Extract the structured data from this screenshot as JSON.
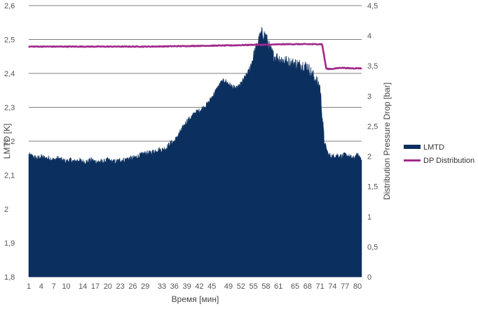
{
  "chart_data": {
    "type": "area",
    "xlabel": "Время [мин]",
    "ylabel_left": "LMTD [K]",
    "ylabel_right": "Distribution Pressure Drop [bar]",
    "x_ticks": [
      "1",
      "4",
      "7",
      "10",
      "14",
      "17",
      "20",
      "23",
      "26",
      "29",
      "33",
      "36",
      "39",
      "42",
      "45",
      "49",
      "52",
      "55",
      "58",
      "61",
      "65",
      "68",
      "71",
      "74",
      "77",
      "80"
    ],
    "x_range": [
      1,
      81
    ],
    "y_left": {
      "range": [
        1.8,
        2.6
      ],
      "ticks": [
        1.8,
        1.9,
        2.0,
        2.1,
        2.2,
        2.3,
        2.4,
        2.5,
        2.6
      ],
      "tick_labels": [
        "1,8",
        "1,9",
        "2",
        "2,1",
        "2,2",
        "2,3",
        "2,4",
        "2,5",
        "2,6"
      ]
    },
    "y_right": {
      "range": [
        0,
        4.5
      ],
      "ticks": [
        0,
        0.5,
        1,
        1.5,
        2,
        2.5,
        3,
        3.5,
        4,
        4.5
      ],
      "tick_labels": [
        "0",
        "0,5",
        "1",
        "1,5",
        "2",
        "2,5",
        "3",
        "3,5",
        "4",
        "4,5"
      ]
    },
    "grid": "horizontal",
    "legend_position": "right",
    "series": [
      {
        "name": "LMTD",
        "type": "area",
        "axis": "left",
        "color": "#0b2f5e",
        "x": [
          1,
          2,
          3,
          4,
          5,
          6,
          7,
          8,
          9,
          10,
          11,
          12,
          13,
          14,
          15,
          16,
          17,
          18,
          19,
          20,
          21,
          22,
          23,
          24,
          25,
          26,
          27,
          28,
          29,
          30,
          31,
          32,
          33,
          34,
          35,
          36,
          37,
          38,
          39,
          40,
          41,
          42,
          43,
          44,
          45,
          46,
          47,
          48,
          49,
          50,
          51,
          52,
          53,
          54,
          55,
          56,
          57,
          58,
          59,
          60,
          61,
          62,
          63,
          64,
          65,
          66,
          67,
          68,
          69,
          70,
          71,
          72,
          73,
          74,
          75,
          76,
          77,
          78,
          79,
          80,
          81
        ],
        "values": [
          2.16,
          2.155,
          2.15,
          2.155,
          2.15,
          2.15,
          2.145,
          2.15,
          2.145,
          2.14,
          2.145,
          2.14,
          2.145,
          2.14,
          2.14,
          2.145,
          2.14,
          2.14,
          2.14,
          2.145,
          2.14,
          2.14,
          2.145,
          2.145,
          2.15,
          2.15,
          2.155,
          2.16,
          2.165,
          2.165,
          2.17,
          2.175,
          2.175,
          2.18,
          2.195,
          2.2,
          2.22,
          2.24,
          2.26,
          2.27,
          2.285,
          2.29,
          2.3,
          2.31,
          2.33,
          2.35,
          2.37,
          2.38,
          2.37,
          2.36,
          2.355,
          2.37,
          2.39,
          2.41,
          2.45,
          2.49,
          2.52,
          2.51,
          2.47,
          2.45,
          2.445,
          2.44,
          2.435,
          2.43,
          2.43,
          2.425,
          2.425,
          2.42,
          2.4,
          2.38,
          2.36,
          2.2,
          2.16,
          2.155,
          2.16,
          2.155,
          2.16,
          2.155,
          2.15,
          2.16,
          2.15
        ]
      },
      {
        "name": "DP Distribution",
        "type": "line",
        "axis": "right",
        "color": "#a12a8b",
        "x": [
          1,
          10,
          20,
          30,
          40,
          50,
          55,
          58,
          63,
          68,
          71.5,
          72.5,
          74,
          76,
          78,
          81
        ],
        "values": [
          3.82,
          3.82,
          3.82,
          3.82,
          3.83,
          3.84,
          3.85,
          3.85,
          3.86,
          3.86,
          3.86,
          3.45,
          3.45,
          3.47,
          3.46,
          3.46
        ]
      }
    ]
  }
}
